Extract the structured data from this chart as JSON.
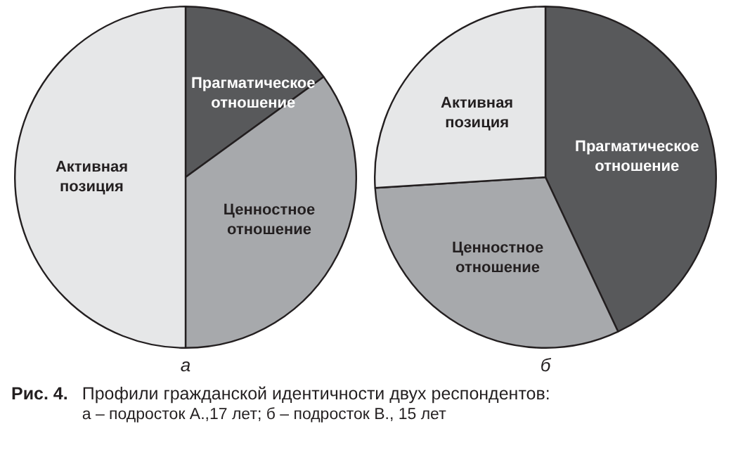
{
  "chart_data": [
    {
      "type": "pie",
      "title": "а",
      "categories": [
        "Прагматическое отношение",
        "Ценностное отношение",
        "Активная позиция"
      ],
      "values": [
        15,
        35,
        50
      ],
      "colors": [
        "#58595b",
        "#a7a9ac",
        "#e6e7e8"
      ],
      "legend": false,
      "annotations": [
        "Рис. 4.",
        "Профили гражданской идентичности двух респондентов:",
        "а – подросток А.,17 лет; б – подросток В., 15 лет"
      ]
    },
    {
      "type": "pie",
      "title": "б",
      "categories": [
        "Прагматическое отношение",
        "Ценностное отношение",
        "Активная позиция"
      ],
      "values": [
        43,
        31,
        26
      ],
      "colors": [
        "#58595b",
        "#a7a9ac",
        "#e6e7e8"
      ],
      "legend": false
    }
  ]
}
